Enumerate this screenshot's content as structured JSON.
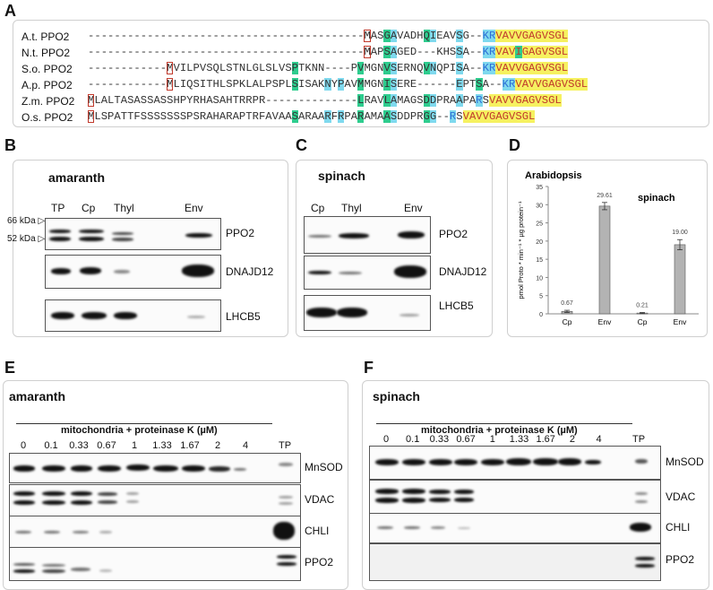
{
  "panels": {
    "a": "A",
    "b": "B",
    "c": "C",
    "d": "D",
    "e": "E",
    "f": "F"
  },
  "alignment": {
    "rows": [
      {
        "name": "A.t. PPO2"
      },
      {
        "name": "N.t. PPO2"
      },
      {
        "name": "S.o. PPO2"
      },
      {
        "name": "A.p. PPO2"
      },
      {
        "name": "Z.m. PPO2"
      },
      {
        "name": "O.s. PPO2"
      }
    ],
    "sequences": [
      "------------------------------------------MASGAVADHQIEAVSG--KRVAVVGAGVSGL",
      "------------------------------------------MAPSAGED---KHSSA--KRVAVIGAGVSGL",
      "------------MVILPVSQLSTNLGLSLVSPTKNN----PVMGNVSERNQVNQPISA--KRVAVVGAGVSGL",
      "------------MLIQSITHLSPKLALPSPLSISAKNYPAVMMGNISERE------EPTSA--KRVAVVGAGVSGL",
      "MLALTASASSASSHPYRHASAHTRRPR--------------LRAVLAMAGSDDPRAAPARSVAVVGAGVSGL",
      "MLSPATTFSSSSSSSPSRAHARAPTRFAVAASARAARFRPARAMAASDDPRGG--RSVAVVGAGVSGL"
    ]
  },
  "panel_b": {
    "title": "amaranth",
    "lanes": [
      "TP",
      "Cp",
      "Thyl",
      "Env"
    ],
    "markers": [
      "66 kDa",
      "52 kDa"
    ],
    "proteins": [
      "PPO2",
      "DNAJD12",
      "LHCB5"
    ]
  },
  "panel_c": {
    "title": "spinach",
    "lanes": [
      "Cp",
      "Thyl",
      "Env"
    ],
    "proteins": [
      "PPO2",
      "DNAJD12",
      "LHCB5"
    ]
  },
  "panel_d": {
    "chart_data": {
      "type": "bar",
      "title": "Arabidopsis",
      "subtitle": "spinach",
      "categories": [
        "Cp",
        "Env",
        "Cp",
        "Env"
      ],
      "values": [
        0.67,
        29.61,
        0.21,
        19.0
      ],
      "value_labels": [
        "0.67",
        "29.61",
        "0.21",
        "19.00"
      ],
      "errors": [
        0.3,
        1.0,
        0.15,
        1.4
      ],
      "ylabel": "pmol Proto * min⁻¹ * µg protein⁻¹",
      "ylim": [
        0,
        35
      ],
      "yticks": [
        "0",
        "5",
        "10",
        "15",
        "20",
        "25",
        "30",
        "35"
      ],
      "bar_color": "#b3b3b3"
    }
  },
  "panel_e": {
    "title": "amaranth",
    "treatment": "mitochondria + proteinase K (µM)",
    "lanes": [
      "0",
      "0.1",
      "0.33",
      "0.67",
      "1",
      "1.33",
      "1.67",
      "2",
      "4",
      "TP"
    ],
    "proteins": [
      "MnSOD",
      "VDAC",
      "CHLI",
      "PPO2"
    ]
  },
  "panel_f": {
    "title": "spinach",
    "treatment": "mitochondria + proteinase K (µM)",
    "lanes": [
      "0",
      "0.1",
      "0.33",
      "0.67",
      "1",
      "1.33",
      "1.67",
      "2",
      "4",
      "TP"
    ],
    "proteins": [
      "MnSOD",
      "VDAC",
      "CHLI",
      "PPO2"
    ]
  }
}
